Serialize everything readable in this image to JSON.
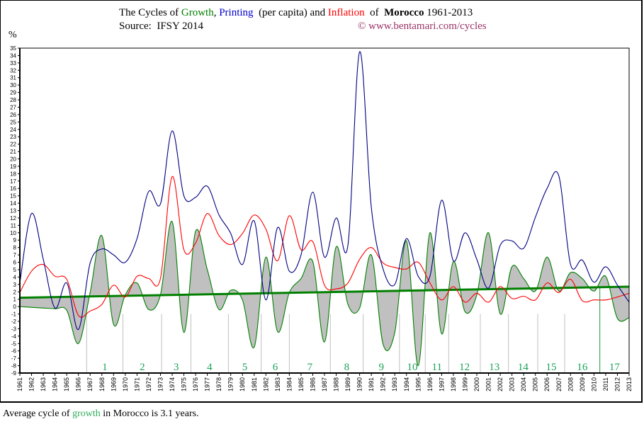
{
  "header": {
    "title_parts": {
      "p1": "The Cycles of ",
      "growth": "Growth",
      "p2": ", ",
      "printing": "Printing",
      "p3": "  (per capita) and ",
      "inflation": "Inflation",
      "p4": "  of  ",
      "country": "Morocco",
      "p5": " 1961-2013"
    },
    "source": "Source:  IFSY 2014",
    "copyright": "© www.bentamari.com/cycles"
  },
  "footer": {
    "p1": "Average cycle of ",
    "growth": "growth",
    "p2": " in Morocco is 3.1 years."
  },
  "colors": {
    "growth": "#008000",
    "printing": "#000080",
    "inflation": "#ff0000",
    "trend": "#008000",
    "fill": "#c0c0c0",
    "cycle_labels": "#1aa35a"
  },
  "chart_data": {
    "type": "line",
    "ylabel": "%",
    "ylim": [
      -9,
      35
    ],
    "xlim": [
      1961,
      2013
    ],
    "grid": false,
    "x": [
      1961,
      1962,
      1963,
      1964,
      1965,
      1966,
      1967,
      1968,
      1969,
      1970,
      1971,
      1972,
      1973,
      1974,
      1975,
      1976,
      1977,
      1978,
      1979,
      1980,
      1981,
      1982,
      1983,
      1984,
      1985,
      1986,
      1987,
      1988,
      1989,
      1990,
      1991,
      1992,
      1993,
      1994,
      1995,
      1996,
      1997,
      1998,
      1999,
      2000,
      2001,
      2002,
      2003,
      2004,
      2005,
      2006,
      2007,
      2008,
      2009,
      2010,
      2011,
      2012,
      2013
    ],
    "series": [
      {
        "key": "printing",
        "values": [
          3.2,
          12.6,
          6.4,
          -0.2,
          3.2,
          -3.1,
          5.9,
          7.8,
          7.0,
          6.0,
          9.2,
          15.6,
          13.9,
          23.8,
          15.0,
          14.8,
          16.3,
          12.4,
          9.9,
          5.7,
          11.6,
          0.9,
          10.7,
          4.8,
          7.0,
          15.5,
          6.7,
          12.0,
          8.3,
          34.5,
          13.4,
          5.1,
          3.0,
          9.2,
          4.1,
          4.1,
          14.4,
          6.2,
          10.0,
          6.4,
          2.5,
          8.3,
          8.9,
          7.9,
          12.1,
          16.0,
          17.7,
          5.7,
          6.3,
          3.3,
          5.4,
          2.9,
          0.6
        ]
      },
      {
        "key": "inflation",
        "values": [
          1.9,
          4.8,
          5.7,
          4.1,
          3.7,
          -1.2,
          -0.6,
          0.3,
          2.9,
          1.3,
          4.1,
          3.8,
          3.8,
          17.6,
          7.7,
          8.6,
          12.6,
          9.6,
          8.4,
          9.9,
          12.4,
          10.5,
          6.2,
          12.3,
          7.7,
          8.8,
          2.9,
          2.4,
          3.2,
          6.4,
          8.0,
          5.9,
          5.3,
          5.1,
          6.0,
          3.2,
          0.9,
          2.7,
          0.6,
          1.8,
          0.6,
          2.7,
          1.1,
          1.4,
          0.9,
          3.2,
          1.9,
          3.7,
          0.8,
          0.9,
          0.9,
          1.3,
          1.8
        ]
      },
      {
        "key": "growth",
        "values": [
          0.0,
          -0.1,
          -0.2,
          -0.3,
          -0.5,
          -5.0,
          1.9,
          9.6,
          -2.4,
          1.6,
          3.2,
          -0.4,
          1.6,
          11.5,
          -3.5,
          10.2,
          5.0,
          -0.4,
          2.2,
          0.9,
          -5.5,
          6.7,
          -3.4,
          1.9,
          3.8,
          6.1,
          -4.8,
          8.1,
          0.3,
          -0.2,
          7.0,
          -5.1,
          -3.5,
          8.9,
          -8.0,
          10.0,
          -3.7,
          6.1,
          -0.7,
          1.6,
          10.0,
          -1.0,
          5.4,
          3.8,
          2.1,
          6.7,
          2.1,
          4.6,
          3.8,
          2.1,
          4.1,
          -1.6,
          -1.5
        ]
      }
    ],
    "trend": {
      "key": "growth-trend",
      "start": [
        1961,
        1.2
      ],
      "end": [
        2013,
        2.7
      ]
    },
    "cycle_boundaries": [
      1966.7,
      1969.8,
      1973.1,
      1975.6,
      1978.8,
      1981.6,
      1984.0,
      1987.5,
      1990.3,
      1993.4,
      1995.6,
      1997.6,
      2000.3,
      2002.7,
      2005.2,
      2007.5,
      2010.5
    ],
    "cycle_labels": [
      "1",
      "2",
      "3",
      "4",
      "5",
      "6",
      "7",
      "8",
      "9",
      "10",
      "11",
      "12",
      "13",
      "14",
      "15",
      "16",
      "17"
    ]
  }
}
